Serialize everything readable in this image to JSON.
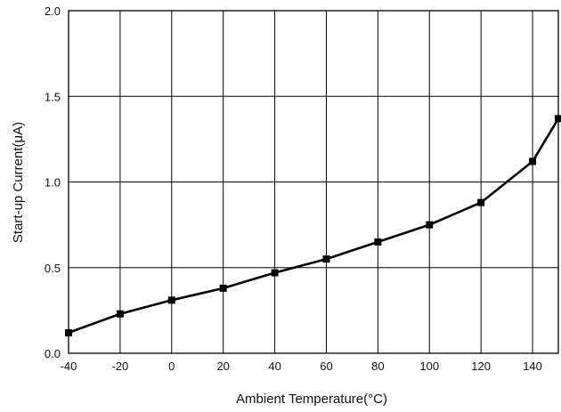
{
  "chart_data": {
    "type": "line",
    "title": "",
    "xlabel": "Ambient Temperature(°C)",
    "ylabel": "Start-up Current(μA)",
    "xlim": [
      -40,
      150
    ],
    "ylim": [
      0.0,
      2.0
    ],
    "x_ticks": [
      -40,
      -20,
      0,
      20,
      40,
      60,
      80,
      100,
      120,
      140
    ],
    "x_tick_labels": [
      "-40",
      "-20",
      "0",
      "20",
      "40",
      "60",
      "80",
      "100",
      "120",
      "140"
    ],
    "y_ticks": [
      0.0,
      0.5,
      1.0,
      1.5,
      2.0
    ],
    "y_tick_labels": [
      "0.0",
      "0.5",
      "1.0",
      "1.5",
      "2.0"
    ],
    "grid": true,
    "marker": "square",
    "line_color": "#000000",
    "x": [
      -40,
      -20,
      0,
      20,
      40,
      60,
      80,
      100,
      120,
      140,
      150
    ],
    "values": [
      0.12,
      0.23,
      0.31,
      0.38,
      0.47,
      0.55,
      0.65,
      0.75,
      0.88,
      1.12,
      1.37
    ]
  }
}
